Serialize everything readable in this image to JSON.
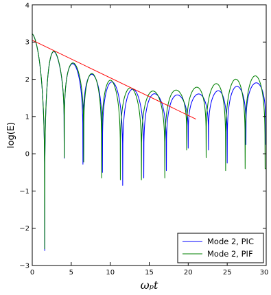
{
  "chart_data": {
    "type": "line",
    "xlabel": "ωₚt",
    "ylabel": "log(E)",
    "xlim": [
      0,
      30
    ],
    "ylim": [
      -3,
      4
    ],
    "x_ticks": [
      "0",
      "5",
      "10",
      "15",
      "20",
      "25",
      "30"
    ],
    "y_ticks": [
      "−3",
      "−2",
      "−1",
      "0",
      "1",
      "2",
      "3",
      "4"
    ],
    "legend_position": "lower-right",
    "grid": false,
    "series": [
      {
        "name": "Mode 2, PIC",
        "color": "#0000ff",
        "envelope": {
          "t": [
            0,
            2,
            4,
            6,
            8,
            10,
            12,
            14,
            16,
            18,
            20,
            22,
            24,
            26,
            28,
            30
          ],
          "log_e": [
            3.22,
            2.85,
            2.58,
            2.32,
            2.1,
            1.95,
            1.78,
            1.68,
            1.6,
            1.58,
            1.58,
            1.62,
            1.7,
            1.8,
            1.88,
            1.95
          ]
        },
        "minima": [
          {
            "t": 1.6,
            "log_e": -2.6
          },
          {
            "t": 4.1,
            "log_e": -0.12
          },
          {
            "t": 6.5,
            "log_e": -0.28
          },
          {
            "t": 9.0,
            "log_e": -0.5
          },
          {
            "t": 11.6,
            "log_e": -0.85
          },
          {
            "t": 14.3,
            "log_e": -0.65
          },
          {
            "t": 17.2,
            "log_e": -0.45
          },
          {
            "t": 20.0,
            "log_e": 0.15
          },
          {
            "t": 22.6,
            "log_e": 0.1
          },
          {
            "t": 25.0,
            "log_e": -0.25
          },
          {
            "t": 27.4,
            "log_e": 0.25
          }
        ]
      },
      {
        "name": "Mode 2, PIF",
        "color": "#008000",
        "envelope": {
          "t": [
            0,
            2,
            4,
            6,
            8,
            10,
            12,
            14,
            16,
            18,
            20,
            22,
            24,
            26,
            28,
            30
          ],
          "log_e": [
            3.22,
            2.85,
            2.6,
            2.35,
            2.12,
            1.98,
            1.8,
            1.7,
            1.68,
            1.7,
            1.75,
            1.82,
            1.9,
            2.0,
            2.08,
            2.12
          ]
        },
        "minima": [
          {
            "t": 1.6,
            "log_e": -2.55
          },
          {
            "t": 4.1,
            "log_e": -0.1
          },
          {
            "t": 6.6,
            "log_e": -0.22
          },
          {
            "t": 8.9,
            "log_e": -0.65
          },
          {
            "t": 11.3,
            "log_e": -0.7
          },
          {
            "t": 14.0,
            "log_e": -0.7
          },
          {
            "t": 17.0,
            "log_e": -0.65
          },
          {
            "t": 19.8,
            "log_e": 0.1
          },
          {
            "t": 22.3,
            "log_e": -0.1
          },
          {
            "t": 24.8,
            "log_e": -0.45
          },
          {
            "t": 27.3,
            "log_e": -0.4
          }
        ]
      }
    ],
    "fit_line": {
      "color": "#ff0000",
      "x": [
        0,
        21
      ],
      "y": [
        3.05,
        0.93
      ]
    }
  }
}
